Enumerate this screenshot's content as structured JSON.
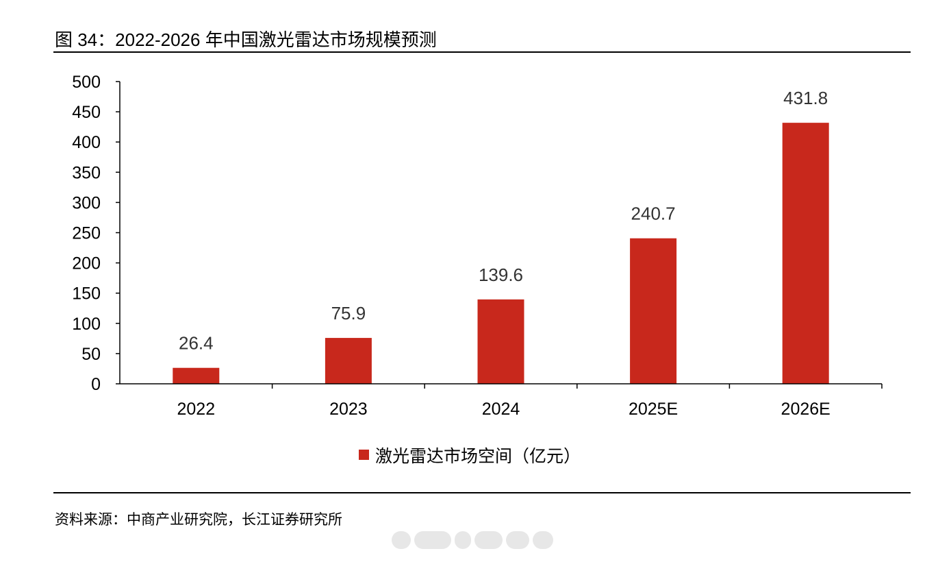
{
  "title": "图  34：2022-2026 年中国激光雷达市场规模预测",
  "source": "资料来源：中商产业研究院，长江证券研究所",
  "colors": {
    "bar": "#c8281c",
    "axis": "#000000",
    "label": "#333333"
  },
  "chart_data": {
    "type": "bar",
    "categories": [
      "2022",
      "2023",
      "2024",
      "2025E",
      "2026E"
    ],
    "series": [
      {
        "name": "激光雷达市场空间（亿元）",
        "values": [
          26.4,
          75.9,
          139.6,
          240.7,
          431.8
        ],
        "data_labels": [
          "26.4",
          "75.9",
          "139.6",
          "240.7",
          "431.8"
        ]
      }
    ],
    "ylim": [
      0,
      500
    ],
    "yticks": [
      0,
      50,
      100,
      150,
      200,
      250,
      300,
      350,
      400,
      450,
      500
    ],
    "ytick_labels": [
      "0",
      "50",
      "100",
      "150",
      "200",
      "250",
      "300",
      "350",
      "400",
      "450",
      "500"
    ],
    "grid": false,
    "legend_position": "bottom-center"
  }
}
